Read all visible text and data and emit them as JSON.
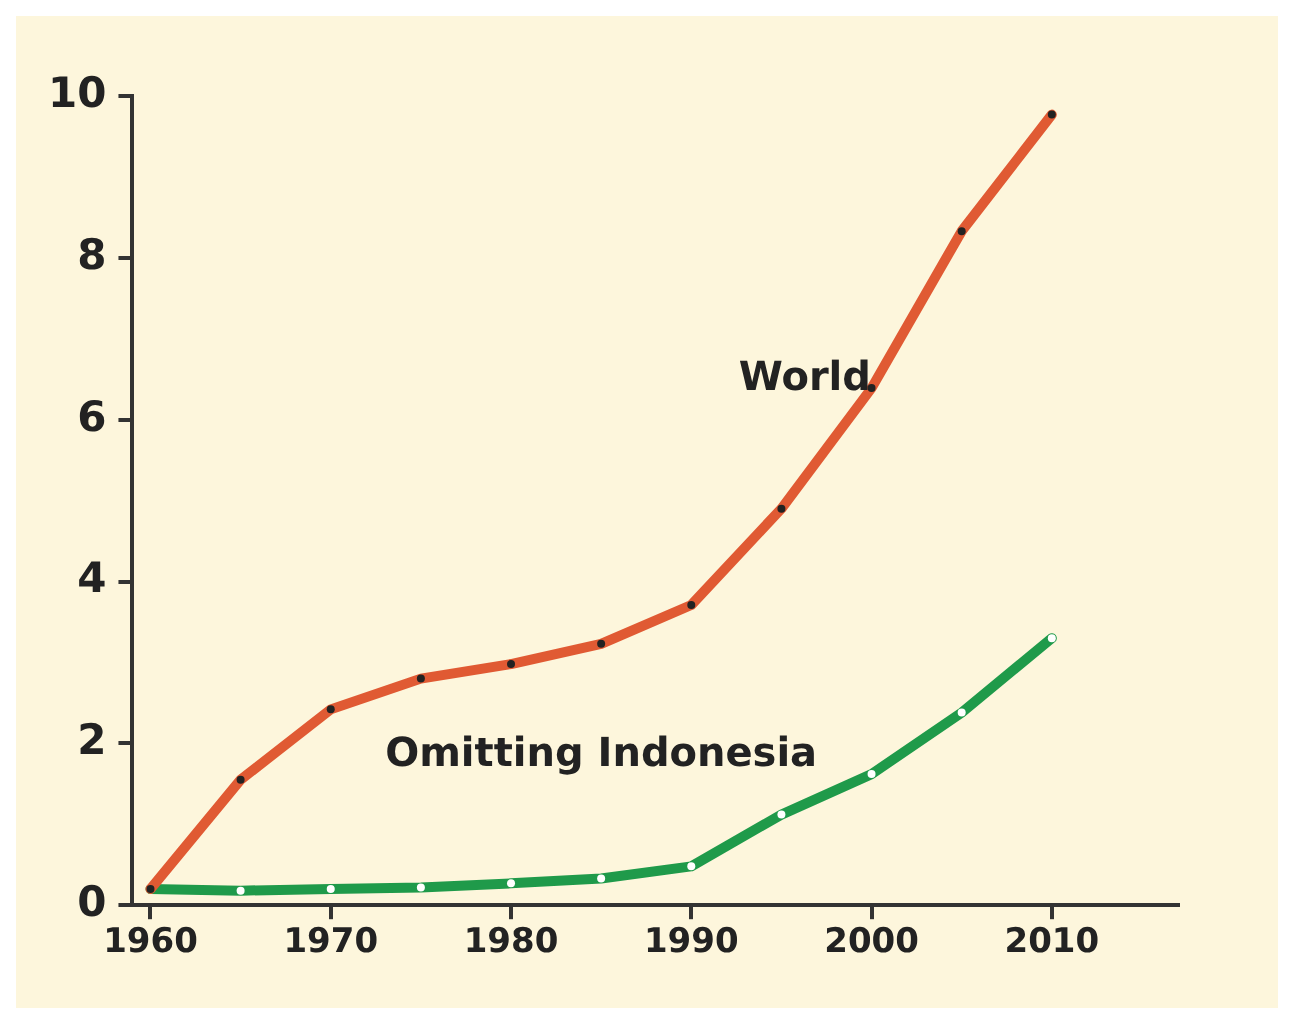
{
  "chart_data": {
    "type": "line",
    "x": [
      1960,
      1965,
      1970,
      1975,
      1980,
      1985,
      1990,
      1995,
      2000,
      2005,
      2010
    ],
    "series": [
      {
        "name": "World",
        "color": "#e05a33",
        "values": [
          0.2,
          1.55,
          2.42,
          2.8,
          2.98,
          3.23,
          3.71,
          4.9,
          6.39,
          8.33,
          9.77
        ]
      },
      {
        "name": "Omitting Indonesia",
        "color": "#1f9a4a",
        "values": [
          0.2,
          0.18,
          0.2,
          0.22,
          0.27,
          0.33,
          0.48,
          1.12,
          1.62,
          2.38,
          3.3
        ]
      }
    ],
    "xlim": [
      1959,
      2017
    ],
    "xticks": [
      1960,
      1970,
      1980,
      1990,
      2000,
      2010
    ],
    "ylim": [
      0,
      10
    ],
    "yticks": [
      0,
      2,
      4,
      6,
      8,
      10
    ],
    "grid": false,
    "legend": false,
    "marker": "circle",
    "line_style": "solid"
  }
}
